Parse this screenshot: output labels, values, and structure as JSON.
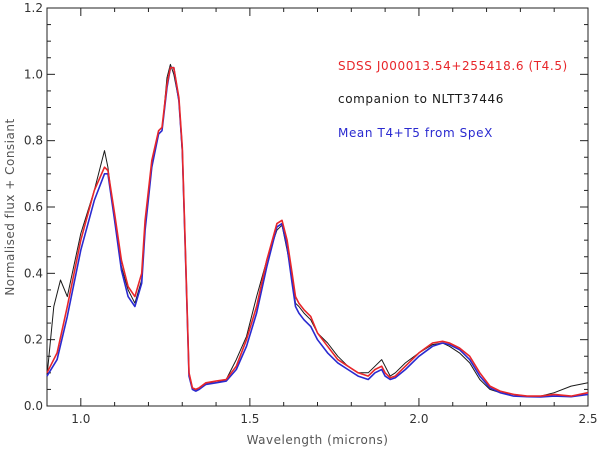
{
  "chart_data": {
    "type": "line",
    "xlabel": "Wavelength (microns)",
    "ylabel": "Normalised flux + Consiant",
    "xlim": [
      0.9,
      2.5
    ],
    "ylim": [
      0.0,
      1.2
    ],
    "x_ticks": [
      "1.0",
      "1.5",
      "2.0",
      "2.5"
    ],
    "x_tick_values": [
      1.0,
      1.5,
      2.0,
      2.5
    ],
    "y_ticks": [
      "0.0",
      "0.2",
      "0.4",
      "0.6",
      "0.8",
      "1.0",
      "1.2"
    ],
    "y_tick_values": [
      0.0,
      0.2,
      0.4,
      0.6,
      0.8,
      1.0,
      1.2
    ],
    "legend_position": "top-right",
    "series": [
      {
        "name": "SDSS J000013.54+255418.6 (T4.5)",
        "color": "#e8262a",
        "x": [
          0.9,
          0.93,
          0.96,
          1.0,
          1.04,
          1.07,
          1.08,
          1.1,
          1.12,
          1.14,
          1.16,
          1.18,
          1.19,
          1.21,
          1.23,
          1.24,
          1.255,
          1.265,
          1.275,
          1.29,
          1.3,
          1.31,
          1.32,
          1.33,
          1.34,
          1.35,
          1.37,
          1.4,
          1.43,
          1.46,
          1.49,
          1.52,
          1.55,
          1.58,
          1.595,
          1.61,
          1.625,
          1.635,
          1.645,
          1.66,
          1.68,
          1.7,
          1.73,
          1.76,
          1.79,
          1.82,
          1.85,
          1.87,
          1.89,
          1.9,
          1.915,
          1.93,
          1.96,
          2.0,
          2.04,
          2.07,
          2.09,
          2.12,
          2.15,
          2.18,
          2.21,
          2.24,
          2.28,
          2.32,
          2.36,
          2.4,
          2.45,
          2.5
        ],
        "y": [
          0.1,
          0.16,
          0.3,
          0.5,
          0.65,
          0.72,
          0.71,
          0.58,
          0.44,
          0.36,
          0.33,
          0.4,
          0.56,
          0.74,
          0.83,
          0.84,
          0.97,
          1.02,
          1.02,
          0.93,
          0.78,
          0.45,
          0.1,
          0.055,
          0.05,
          0.055,
          0.07,
          0.075,
          0.08,
          0.12,
          0.2,
          0.3,
          0.44,
          0.55,
          0.56,
          0.5,
          0.4,
          0.33,
          0.31,
          0.29,
          0.27,
          0.22,
          0.18,
          0.14,
          0.12,
          0.1,
          0.09,
          0.11,
          0.12,
          0.1,
          0.085,
          0.09,
          0.12,
          0.16,
          0.19,
          0.195,
          0.19,
          0.175,
          0.15,
          0.1,
          0.06,
          0.045,
          0.035,
          0.03,
          0.03,
          0.035,
          0.03,
          0.04
        ]
      },
      {
        "name": "companion to NLTT37446",
        "color": "#1a1a1a",
        "x": [
          0.9,
          0.92,
          0.94,
          0.96,
          1.0,
          1.04,
          1.07,
          1.08,
          1.1,
          1.12,
          1.14,
          1.16,
          1.18,
          1.19,
          1.21,
          1.23,
          1.24,
          1.255,
          1.265,
          1.275,
          1.29,
          1.3,
          1.31,
          1.32,
          1.33,
          1.34,
          1.35,
          1.37,
          1.4,
          1.43,
          1.46,
          1.49,
          1.52,
          1.55,
          1.58,
          1.595,
          1.61,
          1.625,
          1.635,
          1.645,
          1.66,
          1.68,
          1.7,
          1.73,
          1.76,
          1.79,
          1.82,
          1.85,
          1.87,
          1.89,
          1.9,
          1.915,
          1.93,
          1.96,
          2.0,
          2.04,
          2.07,
          2.09,
          2.12,
          2.15,
          2.18,
          2.21,
          2.24,
          2.28,
          2.32,
          2.36,
          2.4,
          2.45,
          2.5
        ],
        "y": [
          0.09,
          0.3,
          0.38,
          0.33,
          0.52,
          0.65,
          0.77,
          0.72,
          0.56,
          0.42,
          0.35,
          0.31,
          0.38,
          0.54,
          0.73,
          0.82,
          0.83,
          0.99,
          1.03,
          1.0,
          0.92,
          0.76,
          0.44,
          0.1,
          0.055,
          0.05,
          0.05,
          0.07,
          0.07,
          0.08,
          0.14,
          0.21,
          0.33,
          0.44,
          0.53,
          0.545,
          0.47,
          0.39,
          0.31,
          0.3,
          0.28,
          0.26,
          0.22,
          0.19,
          0.15,
          0.12,
          0.1,
          0.1,
          0.12,
          0.14,
          0.12,
          0.09,
          0.1,
          0.13,
          0.16,
          0.185,
          0.19,
          0.18,
          0.16,
          0.13,
          0.08,
          0.05,
          0.04,
          0.035,
          0.03,
          0.03,
          0.04,
          0.06,
          0.07
        ]
      },
      {
        "name": "Mean T4+T5 from SpeX",
        "color": "#2a2ad0",
        "x": [
          0.9,
          0.93,
          0.96,
          1.0,
          1.04,
          1.07,
          1.08,
          1.1,
          1.12,
          1.14,
          1.16,
          1.18,
          1.19,
          1.21,
          1.23,
          1.24,
          1.255,
          1.265,
          1.275,
          1.29,
          1.3,
          1.31,
          1.32,
          1.33,
          1.34,
          1.35,
          1.37,
          1.4,
          1.43,
          1.46,
          1.49,
          1.52,
          1.55,
          1.58,
          1.595,
          1.61,
          1.625,
          1.635,
          1.645,
          1.66,
          1.68,
          1.7,
          1.73,
          1.76,
          1.79,
          1.82,
          1.85,
          1.87,
          1.89,
          1.9,
          1.915,
          1.93,
          1.96,
          2.0,
          2.04,
          2.07,
          2.09,
          2.12,
          2.15,
          2.18,
          2.21,
          2.24,
          2.28,
          2.32,
          2.36,
          2.4,
          2.45,
          2.5
        ],
        "y": [
          0.09,
          0.14,
          0.27,
          0.47,
          0.62,
          0.7,
          0.7,
          0.56,
          0.41,
          0.33,
          0.3,
          0.37,
          0.53,
          0.72,
          0.82,
          0.83,
          0.96,
          1.02,
          1.02,
          0.92,
          0.77,
          0.44,
          0.09,
          0.05,
          0.045,
          0.05,
          0.065,
          0.07,
          0.075,
          0.11,
          0.18,
          0.28,
          0.42,
          0.54,
          0.55,
          0.48,
          0.37,
          0.3,
          0.28,
          0.26,
          0.24,
          0.2,
          0.16,
          0.13,
          0.11,
          0.09,
          0.08,
          0.1,
          0.11,
          0.09,
          0.08,
          0.085,
          0.11,
          0.15,
          0.18,
          0.19,
          0.185,
          0.17,
          0.14,
          0.09,
          0.055,
          0.04,
          0.03,
          0.028,
          0.027,
          0.03,
          0.028,
          0.035
        ]
      }
    ]
  }
}
